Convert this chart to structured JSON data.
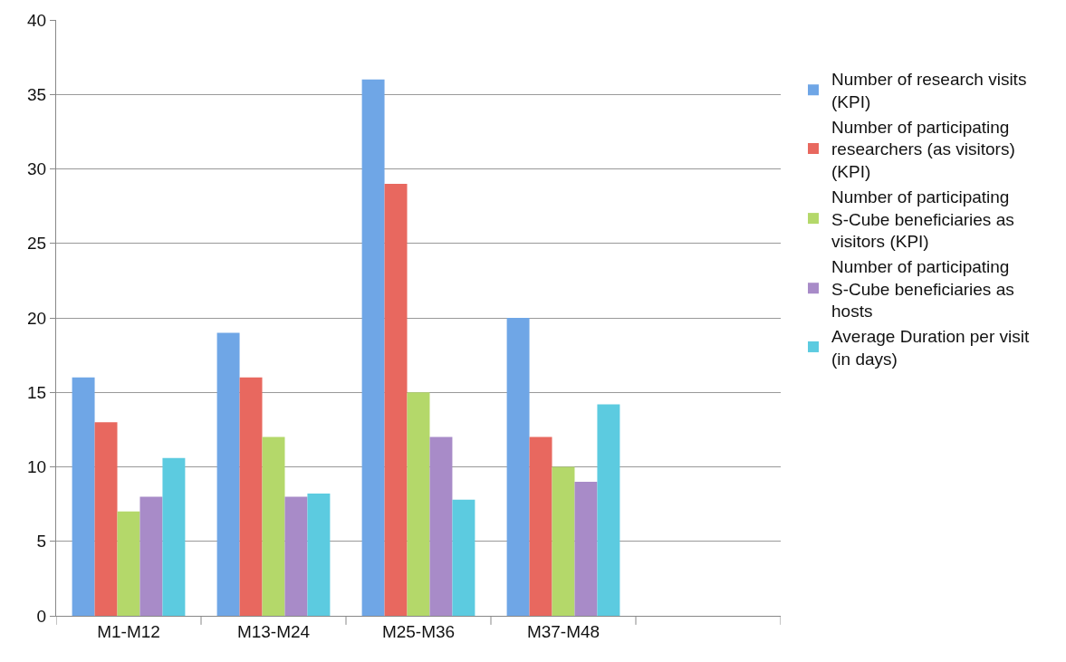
{
  "chart_data": {
    "type": "bar",
    "categories": [
      "M1-M12",
      "M13-M24",
      "M25-M36",
      "M37-M48",
      null
    ],
    "series": [
      {
        "name": "Number of research visits (KPI)",
        "color": "#6fa6e6",
        "values": [
          16,
          19,
          36,
          20,
          null
        ]
      },
      {
        "name": "Number of participating researchers (as visitors) (KPI)",
        "color": "#e8685f",
        "values": [
          13,
          16,
          29,
          12,
          null
        ]
      },
      {
        "name": "Number of participating S-Cube beneficiaries as visitors (KPI)",
        "color": "#b4d86a",
        "values": [
          7,
          12,
          15,
          10,
          null
        ]
      },
      {
        "name": "Number of participating S-Cube beneficiaries as hosts",
        "color": "#a88bc8",
        "values": [
          8,
          8,
          12,
          9,
          null
        ]
      },
      {
        "name": "Average Duration per visit (in days)",
        "color": "#5ccbe0",
        "values": [
          10.6,
          8.2,
          7.8,
          14.2,
          null
        ]
      }
    ],
    "ylim": [
      0,
      40
    ],
    "yticks": [
      0,
      5,
      10,
      15,
      20,
      25,
      30,
      35,
      40
    ],
    "grid": "y",
    "legend": "right"
  }
}
